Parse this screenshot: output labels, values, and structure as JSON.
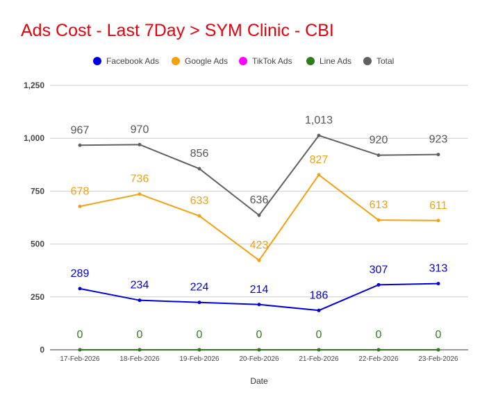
{
  "chart_data": {
    "type": "line",
    "title": "Ads Cost - Last 7Day > SYM Clinic - CBI",
    "xlabel": "Date",
    "ylabel": "",
    "ylim": [
      0,
      1250
    ],
    "yticks": [
      0,
      250,
      500,
      750,
      1000,
      1250
    ],
    "ytick_labels": [
      "0",
      "250",
      "500",
      "750",
      "1,000",
      "1,250"
    ],
    "grid": true,
    "legend_position": "top",
    "categories": [
      "17-Feb-2026",
      "18-Feb-2026",
      "19-Feb-2026",
      "20-Feb-2026",
      "21-Feb-2026",
      "22-Feb-2026",
      "23-Feb-2026"
    ],
    "series": [
      {
        "name": "Facebook Ads",
        "color": "#0000dd",
        "values": [
          289,
          234,
          224,
          214,
          186,
          307,
          313
        ],
        "labels": [
          "289",
          "234",
          "224",
          "214",
          "186",
          "307",
          "313"
        ],
        "label_color": "#0000dd"
      },
      {
        "name": "Google Ads",
        "color": "#f4a00f",
        "values": [
          678,
          736,
          633,
          423,
          827,
          613,
          611
        ],
        "labels": [
          "678",
          "736",
          "633",
          "423",
          "827",
          "613",
          "611"
        ],
        "label_color": "#f4a00f"
      },
      {
        "name": "TikTok Ads",
        "color": "#ff00ff",
        "values": [
          0,
          0,
          0,
          0,
          0,
          0,
          0
        ],
        "labels": [],
        "label_color": "#ff00ff"
      },
      {
        "name": "Line Ads",
        "color": "#2e7d1a",
        "values": [
          0,
          0,
          0,
          0,
          0,
          0,
          0
        ],
        "labels": [
          "0",
          "0",
          "0",
          "0",
          "0",
          "0",
          "0"
        ],
        "label_color": "#2e7d1a"
      },
      {
        "name": "Total",
        "color": "#606060",
        "values": [
          967,
          970,
          856,
          636,
          1013,
          920,
          923
        ],
        "labels": [
          "967",
          "970",
          "856",
          "636",
          "1,013",
          "920",
          "923"
        ],
        "label_color": "#555555"
      }
    ]
  }
}
